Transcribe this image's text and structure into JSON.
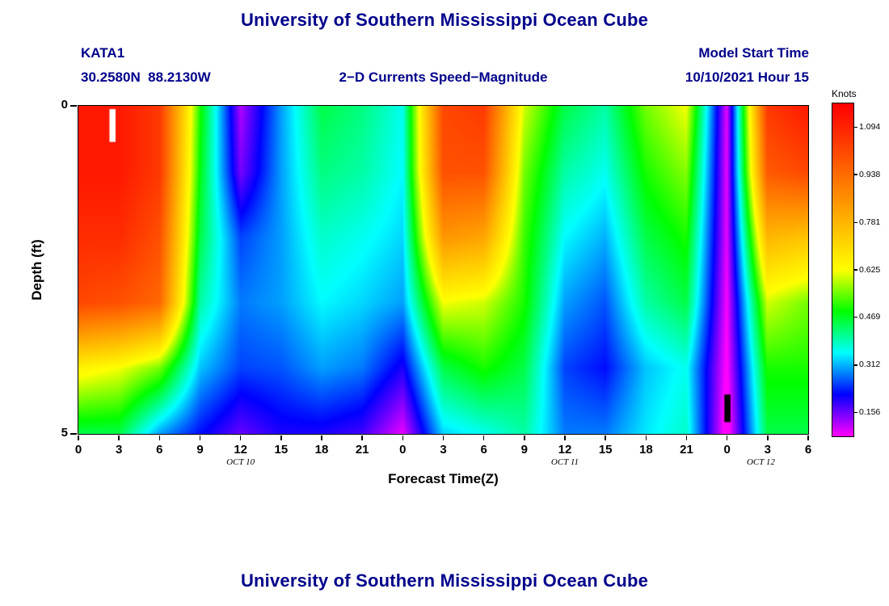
{
  "page": {
    "title_top": "University of Southern Mississippi Ocean Cube",
    "title_bottom": "University of Southern Mississippi Ocean Cube"
  },
  "header": {
    "station_id": "KATA1",
    "station_coords": "30.2580N  88.2130W",
    "plot_title": "2−D Currents Speed−Magnitude",
    "model_start_label": "Model Start Time",
    "model_start_value": "10/10/2021 Hour 15"
  },
  "chart_data": {
    "type": "heatmap",
    "title": "2−D Currents Speed−Magnitude",
    "xlabel": "Forecast Time(Z)",
    "ylabel": "Depth (ft)",
    "colorbar_label": "Knots",
    "units": "knots",
    "x_axis_hours_range": [
      0,
      54
    ],
    "depth_range_ft": [
      0,
      5
    ],
    "x_hours": [
      0,
      3,
      6,
      9,
      12,
      15,
      18,
      21,
      24,
      27,
      30,
      33,
      36,
      39,
      42,
      45,
      48,
      51,
      54
    ],
    "x_tick_labels": [
      "0",
      "3",
      "6",
      "9",
      "12",
      "15",
      "18",
      "21",
      "0",
      "3",
      "6",
      "9",
      "12",
      "15",
      "18",
      "21",
      "0",
      "3",
      "6"
    ],
    "date_labels": [
      {
        "label": "OCT 10",
        "hour": 12
      },
      {
        "label": "OCT 11",
        "hour": 36
      },
      {
        "label": "OCT 12",
        "hour": 50.5
      }
    ],
    "y_ticks": [
      {
        "label": "0",
        "depth": 0
      },
      {
        "label": "5",
        "depth": 5
      }
    ],
    "depths_ft": [
      0,
      1,
      2,
      3,
      4,
      5
    ],
    "values_knots": [
      [
        1.12,
        1.12,
        1.05,
        0.5,
        0.12,
        0.3,
        0.45,
        0.42,
        0.36,
        1.02,
        1.05,
        0.6,
        0.45,
        0.4,
        0.55,
        0.62,
        0.09,
        1.05,
        1.12
      ],
      [
        1.12,
        1.12,
        1.05,
        0.48,
        0.15,
        0.3,
        0.42,
        0.4,
        0.35,
        1.0,
        1.0,
        0.55,
        0.4,
        0.36,
        0.5,
        0.56,
        0.09,
        0.98,
        1.02
      ],
      [
        1.08,
        1.08,
        1.0,
        0.45,
        0.25,
        0.3,
        0.38,
        0.36,
        0.33,
        0.85,
        0.82,
        0.52,
        0.35,
        0.31,
        0.45,
        0.5,
        0.09,
        0.78,
        0.75
      ],
      [
        1.02,
        1.0,
        0.95,
        0.4,
        0.28,
        0.3,
        0.35,
        0.33,
        0.3,
        0.62,
        0.6,
        0.5,
        0.3,
        0.26,
        0.4,
        0.45,
        0.08,
        0.6,
        0.55
      ],
      [
        0.65,
        0.62,
        0.55,
        0.32,
        0.25,
        0.26,
        0.3,
        0.28,
        0.2,
        0.45,
        0.5,
        0.45,
        0.25,
        0.22,
        0.32,
        0.36,
        0.07,
        0.5,
        0.5
      ],
      [
        0.45,
        0.45,
        0.3,
        0.22,
        0.16,
        0.2,
        0.2,
        0.18,
        0.09,
        0.33,
        0.36,
        0.4,
        0.28,
        0.28,
        0.34,
        0.38,
        0.05,
        0.45,
        0.45
      ]
    ],
    "colorbar_ticks": [
      1.094,
      0.938,
      0.781,
      0.625,
      0.469,
      0.312,
      0.156
    ],
    "color_range": [
      0.078,
      1.172
    ],
    "colormap": "magenta-blue-cyan-green-yellow-orange-red",
    "grid": false,
    "markers": [
      {
        "name": "white-bar",
        "hour_start": 2.3,
        "hour_end": 2.75,
        "depth_start": 0.05,
        "depth_end": 0.55,
        "color": "#ffffff"
      },
      {
        "name": "black-bar",
        "hour_start": 47.8,
        "hour_end": 48.25,
        "depth_start": 4.4,
        "depth_end": 4.82,
        "color": "#000000"
      }
    ]
  }
}
